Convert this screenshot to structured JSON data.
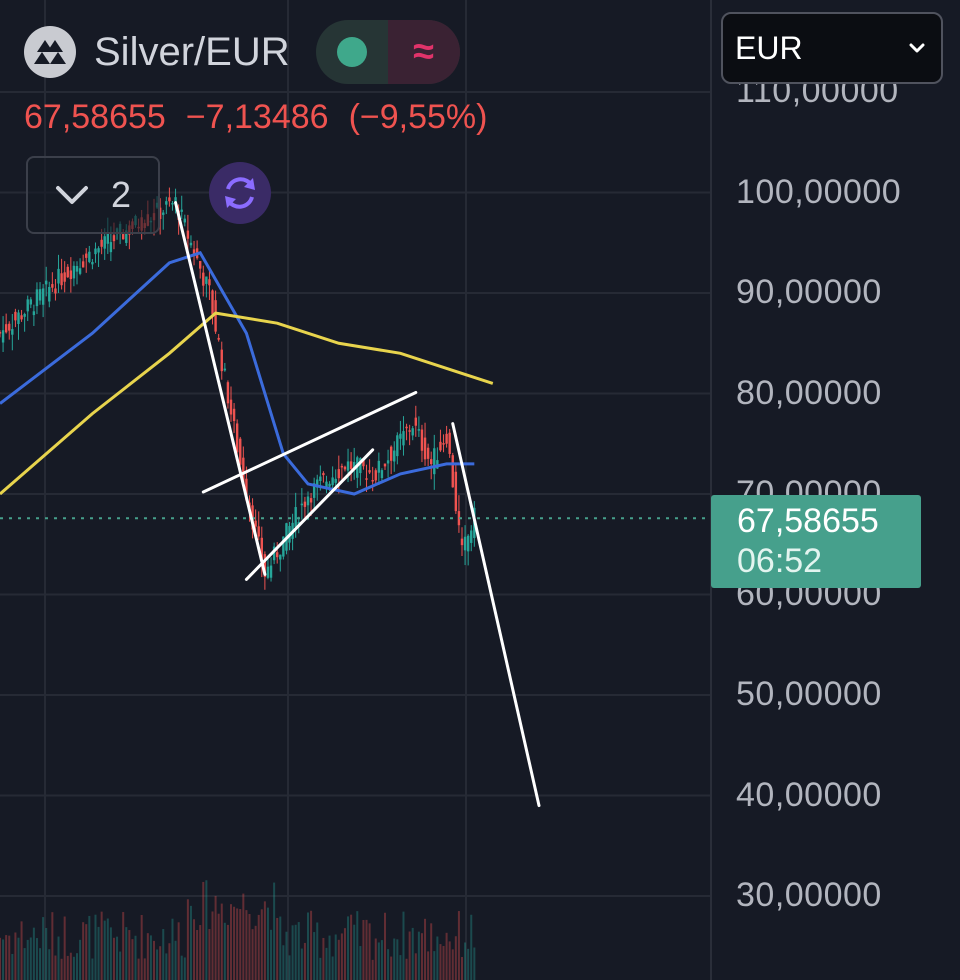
{
  "header": {
    "symbol": "Silver/EUR",
    "last_price": "67,58655",
    "change": "−7,13486",
    "change_percent": "(−9,55%)",
    "collapse_count": "2",
    "logo_icon": "silver-bars-icon",
    "status_icon": "market-open-dot-icon",
    "indicator_icon": "wave-indicator-icon"
  },
  "currency_selector": {
    "value": "EUR"
  },
  "price_tag": {
    "price": "67,58655",
    "countdown": "06:52"
  },
  "colors": {
    "background": "#161a25",
    "up": "#26a69a",
    "down": "#ef5350",
    "ma_fast": "#3b6bdc",
    "ma_slow": "#e8d44d",
    "trend_lines": "#ffffff",
    "price_tag": "#46a08c"
  },
  "chart_data": {
    "type": "candlestick",
    "y_axis": {
      "tick_values": [
        30,
        40,
        50,
        60,
        70,
        80,
        90,
        100,
        110
      ],
      "tick_labels": [
        "30,00000",
        "40,00000",
        "50,00000",
        "60,00000",
        "70,00000",
        "80,00000",
        "90,00000",
        "100,00000",
        "110,00000"
      ],
      "range": [
        28,
        118
      ],
      "position": "right"
    },
    "current_price": 67.58655,
    "key_points": [
      {
        "index": 0,
        "close": 86
      },
      {
        "index": 25,
        "close": 93
      },
      {
        "index": 45,
        "close": 97
      },
      {
        "index": 57,
        "close": 99
      },
      {
        "index": 68,
        "close": 90
      },
      {
        "index": 78,
        "close": 73
      },
      {
        "index": 86,
        "close": 62
      },
      {
        "index": 100,
        "close": 70
      },
      {
        "index": 112,
        "close": 73
      },
      {
        "index": 122,
        "close": 72
      },
      {
        "index": 134,
        "close": 77
      },
      {
        "index": 140,
        "close": 73
      },
      {
        "index": 145,
        "close": 76
      },
      {
        "index": 150,
        "close": 64
      },
      {
        "index": 154,
        "close": 67.6
      }
    ],
    "moving_averages": [
      {
        "color": "#3b6bdc",
        "points": [
          [
            0,
            79
          ],
          [
            30,
            86
          ],
          [
            55,
            93
          ],
          [
            65,
            94
          ],
          [
            80,
            86
          ],
          [
            92,
            74
          ],
          [
            100,
            71
          ],
          [
            115,
            70
          ],
          [
            130,
            72
          ],
          [
            145,
            73
          ],
          [
            154,
            73
          ]
        ]
      },
      {
        "color": "#e8d44d",
        "points": [
          [
            0,
            70
          ],
          [
            30,
            78
          ],
          [
            55,
            84
          ],
          [
            70,
            88
          ],
          [
            90,
            87
          ],
          [
            110,
            85
          ],
          [
            130,
            84
          ],
          [
            150,
            82
          ],
          [
            160,
            81
          ]
        ]
      }
    ],
    "trend_lines": [
      {
        "from": [
          57,
          99
        ],
        "to": [
          86,
          62
        ]
      },
      {
        "from": [
          66,
          70.2
        ],
        "to": [
          135,
          80.1
        ]
      },
      {
        "from": [
          80,
          61.5
        ],
        "to": [
          121,
          74.4
        ]
      },
      {
        "from": [
          147,
          77
        ],
        "to": [
          175,
          39
        ]
      }
    ]
  }
}
